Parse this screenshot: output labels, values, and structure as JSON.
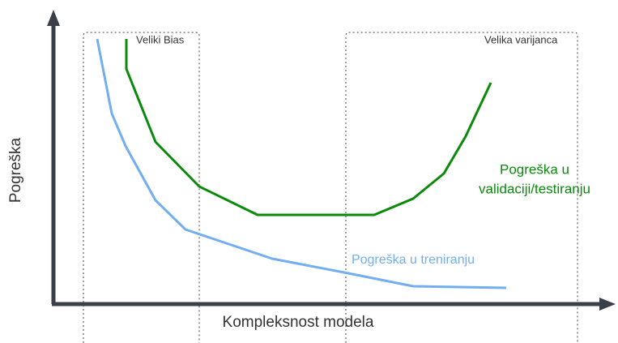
{
  "axes": {
    "y_label": "Pogreška",
    "x_label": "Kompleksnost modela"
  },
  "regions": [
    {
      "label": "Veliki Bias"
    },
    {
      "label": "Velika varijanca"
    }
  ],
  "curves": [
    {
      "label_lines": [
        "Pogreška u",
        "validaciji/testiranju"
      ]
    },
    {
      "label": "Pogreška u treniranju"
    }
  ]
}
